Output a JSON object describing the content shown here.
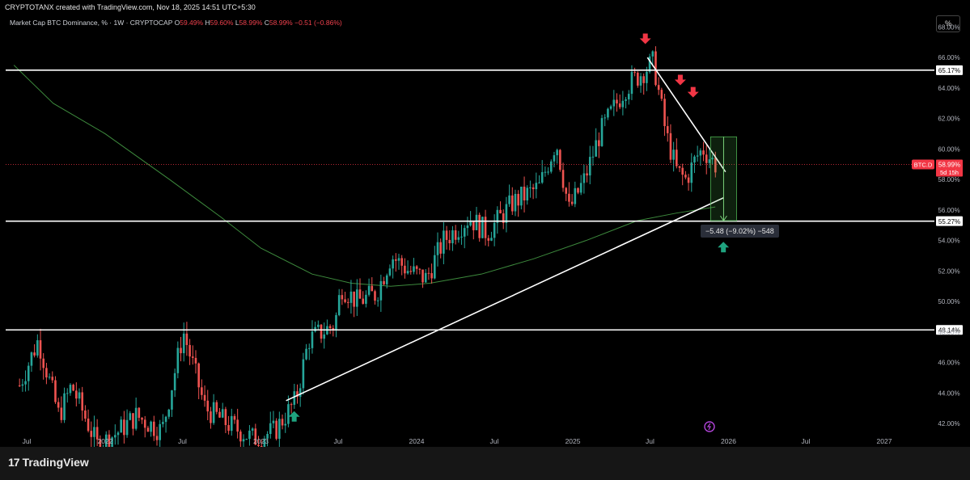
{
  "header": {
    "author_line": "CRYPTOTANX created with TradingView.com, Nov 18, 2025 14:51 UTC+5:30"
  },
  "legend": {
    "title": "Market Cap BTC Dominance, % · 1W · CRYPTOCAP",
    "o_label": "O",
    "o_value": "59.49%",
    "h_label": "H",
    "h_value": "59.60%",
    "l_label": "L",
    "l_value": "58.99%",
    "c_label": "C",
    "c_value": "58.99%",
    "change": "−0.51 (−0.86%)"
  },
  "scale_button": "%",
  "footer": {
    "brand": "TradingView",
    "brand_mark": "17"
  },
  "colors": {
    "up": "#26a69a",
    "down": "#ef5350",
    "ma": "#3d8a3d",
    "lines": "#ffffff",
    "accent": "#f23645"
  },
  "chart_data": {
    "type": "candlestick",
    "symbol_tag": "BTC.D",
    "last_price_label": "58.99%",
    "countdown_label": "5d 15h",
    "y_ticks": [
      "42.00%",
      "44.00%",
      "46.00%",
      "48.00%",
      "50.00%",
      "52.00%",
      "54.00%",
      "56.00%",
      "58.00%",
      "60.00%",
      "62.00%",
      "64.00%",
      "66.00%",
      "68.00%"
    ],
    "y_tick_values": [
      42,
      44,
      46,
      48,
      50,
      52,
      54,
      56,
      58,
      60,
      62,
      64,
      66,
      68
    ],
    "ylim": [
      41,
      68.5
    ],
    "x_ticks": [
      "Jul",
      "2022",
      "Jul",
      "2023",
      "Jul",
      "2024",
      "Jul",
      "2025",
      "Jul",
      "2026",
      "Jul",
      "2027"
    ],
    "x_tick_dates": [
      "2021-07-01",
      "2022-01-01",
      "2022-07-01",
      "2023-01-01",
      "2023-07-01",
      "2024-01-01",
      "2024-07-01",
      "2025-01-01",
      "2025-07-01",
      "2026-01-01",
      "2026-07-01",
      "2027-01-01"
    ],
    "horizontal_levels": [
      {
        "value": 65.17,
        "label": "65.17%"
      },
      {
        "value": 55.27,
        "label": "55.27%"
      },
      {
        "value": 48.14,
        "label": "48.14%"
      }
    ],
    "price_path": [
      [
        "2021-06-01",
        44.5
      ],
      [
        "2021-07-15",
        47.5
      ],
      [
        "2021-09-01",
        42.5
      ],
      [
        "2021-10-01",
        44.5
      ],
      [
        "2021-12-01",
        40.5
      ],
      [
        "2022-01-20",
        41.5
      ],
      [
        "2022-03-01",
        42.5
      ],
      [
        "2022-05-01",
        41.5
      ],
      [
        "2022-06-20",
        48
      ],
      [
        "2022-08-10",
        43
      ],
      [
        "2022-10-01",
        42
      ],
      [
        "2022-12-01",
        41
      ],
      [
        "2023-01-20",
        41.5
      ],
      [
        "2023-03-10",
        43.5
      ],
      [
        "2023-04-10",
        47.5
      ],
      [
        "2023-06-10",
        48.5
      ],
      [
        "2023-06-25",
        51
      ],
      [
        "2023-08-01",
        50
      ],
      [
        "2023-09-15",
        50.5
      ],
      [
        "2023-10-20",
        53
      ],
      [
        "2023-12-01",
        52
      ],
      [
        "2024-01-10",
        51.5
      ],
      [
        "2024-02-20",
        54
      ],
      [
        "2024-04-20",
        55.5
      ],
      [
        "2024-06-01",
        54.5
      ],
      [
        "2024-08-01",
        56.5
      ],
      [
        "2024-10-01",
        57.5
      ],
      [
        "2024-11-10",
        60.5
      ],
      [
        "2024-12-10",
        56
      ],
      [
        "2025-01-15",
        58
      ],
      [
        "2025-02-20",
        61
      ],
      [
        "2025-04-20",
        64
      ],
      [
        "2025-06-26",
        65.7
      ],
      [
        "2025-07-25",
        61
      ],
      [
        "2025-08-20",
        58.5
      ],
      [
        "2025-09-10",
        58
      ],
      [
        "2025-10-05",
        59.5
      ],
      [
        "2025-10-20",
        60
      ],
      [
        "2025-11-18",
        58.99
      ]
    ],
    "moving_average": [
      [
        "2021-06-01",
        65.5
      ],
      [
        "2021-09-01",
        63
      ],
      [
        "2022-01-01",
        61
      ],
      [
        "2022-06-01",
        58
      ],
      [
        "2022-10-01",
        55.5
      ],
      [
        "2023-01-01",
        53.5
      ],
      [
        "2023-05-01",
        51.8
      ],
      [
        "2023-08-01",
        51.2
      ],
      [
        "2023-11-01",
        51.0
      ],
      [
        "2024-02-01",
        51.2
      ],
      [
        "2024-06-01",
        51.8
      ],
      [
        "2024-10-01",
        52.8
      ],
      [
        "2025-02-01",
        54
      ],
      [
        "2025-06-01",
        55.3
      ],
      [
        "2025-09-01",
        55.8
      ],
      [
        "2025-12-01",
        56.2
      ]
    ],
    "trendlines": [
      {
        "from": [
          "2023-03-01",
          43.5
        ],
        "to": [
          "2025-12-20",
          56.8
        ]
      },
      {
        "from": [
          "2025-06-25",
          66.0
        ],
        "to": [
          "2025-12-25",
          58.5
        ]
      }
    ],
    "measure": {
      "from_date": "2025-11-20",
      "to_date": "2026-01-20",
      "top": 60.8,
      "bottom": 55.3,
      "label": "−5.48 (−9.02%) −548"
    },
    "down_arrows": [
      [
        "2025-06-20",
        67.2
      ],
      [
        "2025-09-10",
        64.5
      ],
      [
        "2025-10-10",
        63.7
      ]
    ],
    "up_arrows": [
      [
        "2023-03-20",
        42.5
      ],
      [
        "2025-12-20",
        53.6
      ]
    ]
  }
}
